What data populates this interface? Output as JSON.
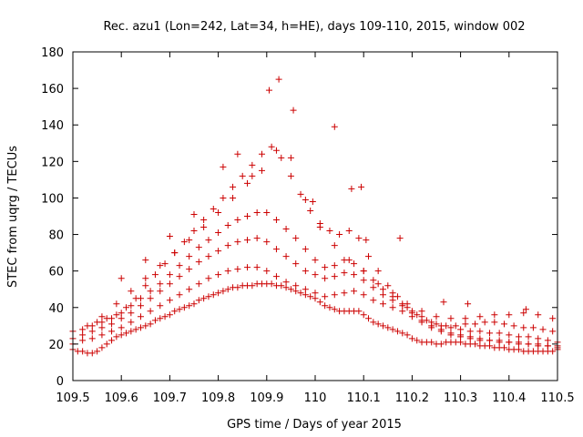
{
  "chart_data": {
    "type": "scatter",
    "title": "Rec. azu1 (Lon=242, Lat=34, h=HE), days 109-110, 2015, window 002",
    "xlabel": "GPS time / Days of year 2015",
    "ylabel": "STEC from uqrg / TECUs",
    "xlim": [
      109.5,
      110.5
    ],
    "ylim": [
      0,
      180
    ],
    "xticks": [
      "109.5",
      "109.6",
      "109.7",
      "109.8",
      "109.9",
      "110",
      "110.1",
      "110.2",
      "110.3",
      "110.4",
      "110.5"
    ],
    "yticks": [
      "0",
      "20",
      "40",
      "60",
      "80",
      "100",
      "120",
      "140",
      "160",
      "180"
    ],
    "grid": false,
    "legend": "none",
    "marker": "plus",
    "color": "#cc0000",
    "series": [
      {
        "x": [
          109.5,
          109.51,
          109.52,
          109.53,
          109.54,
          109.55,
          109.56,
          109.57,
          109.58,
          109.59,
          109.6,
          109.61,
          109.62,
          109.63,
          109.64,
          109.65,
          109.66,
          109.67,
          109.68,
          109.69,
          109.7,
          109.71,
          109.72,
          109.73,
          109.74,
          109.75,
          109.76,
          109.77,
          109.78,
          109.79,
          109.8,
          109.81,
          109.82,
          109.83,
          109.84,
          109.85,
          109.86,
          109.87,
          109.88,
          109.89,
          109.9,
          109.91,
          109.92,
          109.93,
          109.94,
          109.95,
          109.96,
          109.97,
          109.98,
          109.99,
          110.0,
          110.01,
          110.02,
          110.03,
          110.04,
          110.05,
          110.06,
          110.07,
          110.08,
          110.09,
          110.1,
          110.11,
          110.12,
          110.13,
          110.14,
          110.15,
          110.16,
          110.17,
          110.18,
          110.19,
          110.2,
          110.21,
          110.22,
          110.23,
          110.24,
          110.25,
          110.26,
          110.27,
          110.28,
          110.29,
          110.3,
          110.31,
          110.32,
          110.33,
          110.34,
          110.35,
          110.36,
          110.37,
          110.38,
          110.39,
          110.4,
          110.41,
          110.42,
          110.43,
          110.44,
          110.45,
          110.46,
          110.47,
          110.48,
          110.49,
          110.5
        ],
        "y": [
          17,
          16,
          16,
          15,
          15,
          16,
          18,
          20,
          22,
          24,
          25,
          26,
          27,
          28,
          29,
          30,
          31,
          33,
          34,
          35,
          36,
          38,
          39,
          40,
          41,
          42,
          44,
          45,
          46,
          47,
          48,
          49,
          50,
          51,
          51,
          52,
          52,
          52,
          53,
          53,
          53,
          53,
          52,
          52,
          51,
          50,
          49,
          48,
          47,
          46,
          45,
          43,
          41,
          40,
          39,
          38,
          38,
          38,
          38,
          38,
          36,
          34,
          32,
          31,
          30,
          29,
          28,
          27,
          26,
          25,
          23,
          22,
          21,
          21,
          21,
          20,
          20,
          21,
          21,
          21,
          21,
          20,
          20,
          20,
          19,
          19,
          19,
          18,
          18,
          18,
          17,
          17,
          17,
          16,
          16,
          16,
          16,
          16,
          16,
          16,
          17
        ]
      },
      {
        "x": [
          109.5,
          109.52,
          109.54,
          109.56,
          109.58,
          109.6,
          109.62,
          109.64,
          109.66,
          109.68,
          109.7,
          109.72,
          109.74,
          109.76,
          109.78,
          109.8,
          109.82,
          109.84,
          109.86,
          109.88,
          109.9,
          109.92,
          109.94,
          109.96,
          109.98,
          110.0,
          110.02,
          110.04,
          110.06,
          110.08,
          110.1,
          110.12,
          110.14,
          110.16,
          110.18,
          110.2,
          110.22,
          110.24,
          110.26,
          110.28,
          110.3,
          110.32,
          110.34,
          110.36,
          110.38,
          110.4,
          110.42,
          110.44,
          110.46,
          110.48,
          110.5
        ],
        "y": [
          20,
          22,
          23,
          25,
          27,
          29,
          32,
          35,
          38,
          41,
          44,
          47,
          50,
          53,
          56,
          58,
          60,
          61,
          62,
          62,
          60,
          57,
          54,
          52,
          50,
          48,
          46,
          47,
          48,
          49,
          47,
          44,
          42,
          40,
          38,
          35,
          32,
          29,
          27,
          25,
          24,
          23,
          22,
          22,
          21,
          21,
          20,
          20,
          19,
          19,
          19
        ]
      },
      {
        "x": [
          109.5,
          109.52,
          109.54,
          109.56,
          109.58,
          109.6,
          109.62,
          109.64,
          109.66,
          109.68,
          109.7,
          109.72,
          109.74,
          109.76,
          109.78,
          109.8,
          109.82,
          109.84,
          109.86,
          109.88,
          109.9,
          109.92,
          109.94,
          109.96,
          109.98,
          110.0,
          110.02,
          110.04,
          110.06,
          110.08,
          110.1,
          110.12,
          110.14,
          110.16,
          110.18,
          110.2,
          110.22,
          110.24,
          110.26,
          110.28,
          110.3,
          110.32,
          110.34,
          110.36,
          110.38,
          110.4,
          110.42,
          110.44,
          110.46,
          110.48,
          110.5
        ],
        "y": [
          23,
          25,
          27,
          29,
          31,
          34,
          37,
          41,
          45,
          49,
          53,
          57,
          61,
          65,
          68,
          71,
          74,
          76,
          77,
          78,
          76,
          72,
          68,
          64,
          60,
          58,
          56,
          57,
          59,
          58,
          55,
          51,
          47,
          44,
          41,
          37,
          33,
          30,
          28,
          26,
          25,
          24,
          23,
          22,
          22,
          21,
          21,
          20,
          20,
          19,
          18
        ]
      },
      {
        "x": [
          109.5,
          109.52,
          109.54,
          109.56,
          109.58,
          109.6,
          109.62,
          109.64,
          109.66,
          109.68,
          109.7,
          109.72,
          109.74,
          109.76,
          109.78,
          109.8,
          109.82,
          109.84,
          109.86,
          109.88,
          109.9,
          109.92,
          109.94,
          109.96,
          109.98,
          110.0,
          110.02,
          110.04,
          110.06,
          110.08,
          110.1,
          110.12,
          110.14,
          110.16,
          110.18,
          110.2,
          110.22,
          110.24,
          110.26,
          110.28,
          110.3,
          110.32,
          110.34,
          110.36,
          110.38,
          110.4,
          110.42,
          110.44,
          110.46,
          110.48,
          110.5
        ],
        "y": [
          27,
          28,
          30,
          32,
          34,
          37,
          41,
          45,
          49,
          53,
          58,
          63,
          68,
          73,
          77,
          81,
          85,
          88,
          90,
          92,
          92,
          88,
          83,
          78,
          72,
          66,
          62,
          63,
          66,
          64,
          60,
          55,
          50,
          46,
          42,
          38,
          35,
          32,
          30,
          29,
          28,
          27,
          27,
          26,
          26,
          25,
          24,
          24,
          23,
          22,
          21
        ]
      },
      {
        "x": [
          109.53,
          109.55,
          109.57,
          109.59,
          109.61,
          109.63,
          109.65,
          109.67,
          109.69,
          109.71,
          109.73,
          109.75,
          109.77,
          109.79,
          109.81,
          109.83,
          109.85,
          109.87,
          109.89,
          109.91,
          109.93,
          109.95,
          109.97,
          109.99,
          110.01,
          110.03,
          110.05,
          110.07,
          110.09,
          110.11,
          110.13,
          110.15,
          110.17,
          110.19,
          110.21,
          110.23,
          110.25,
          110.27,
          110.29,
          110.31,
          110.33,
          110.35,
          110.37,
          110.39,
          110.41,
          110.43,
          110.45,
          110.47,
          110.49
        ],
        "y": [
          30,
          32,
          34,
          36,
          40,
          45,
          52,
          58,
          64,
          70,
          76,
          82,
          88,
          94,
          100,
          106,
          112,
          118,
          124,
          128,
          122,
          112,
          102,
          93,
          86,
          82,
          80,
          82,
          78,
          68,
          60,
          52,
          46,
          40,
          36,
          33,
          31,
          30,
          30,
          31,
          31,
          32,
          32,
          31,
          30,
          29,
          29,
          28,
          27
        ]
      },
      {
        "x": [
          109.56,
          109.59,
          109.62,
          109.65,
          109.68,
          109.71,
          109.74,
          109.77,
          109.8,
          109.83,
          109.86,
          109.89,
          109.92,
          109.95,
          109.98,
          110.01,
          110.04,
          110.07,
          110.1,
          110.13,
          110.16,
          110.19,
          110.22,
          110.25,
          110.28,
          110.31,
          110.34,
          110.37,
          110.4,
          110.43,
          110.46,
          110.49
        ],
        "y": [
          35,
          42,
          49,
          56,
          63,
          70,
          77,
          84,
          92,
          100,
          108,
          115,
          126,
          122,
          99,
          84,
          74,
          66,
          60,
          53,
          48,
          42,
          38,
          35,
          34,
          34,
          35,
          36,
          36,
          37,
          36,
          34
        ]
      },
      {
        "x": [
          109.6,
          109.65,
          109.7,
          109.75,
          109.81,
          109.84,
          109.87,
          109.905,
          109.925,
          109.955,
          109.995,
          110.04,
          110.075,
          110.095,
          110.105,
          110.175,
          110.265,
          110.315,
          110.435
        ],
        "y": [
          56,
          66,
          79,
          91,
          117,
          124,
          112,
          159,
          165,
          148,
          98,
          139,
          105,
          106,
          77,
          78,
          43,
          42,
          39
        ]
      }
    ]
  }
}
